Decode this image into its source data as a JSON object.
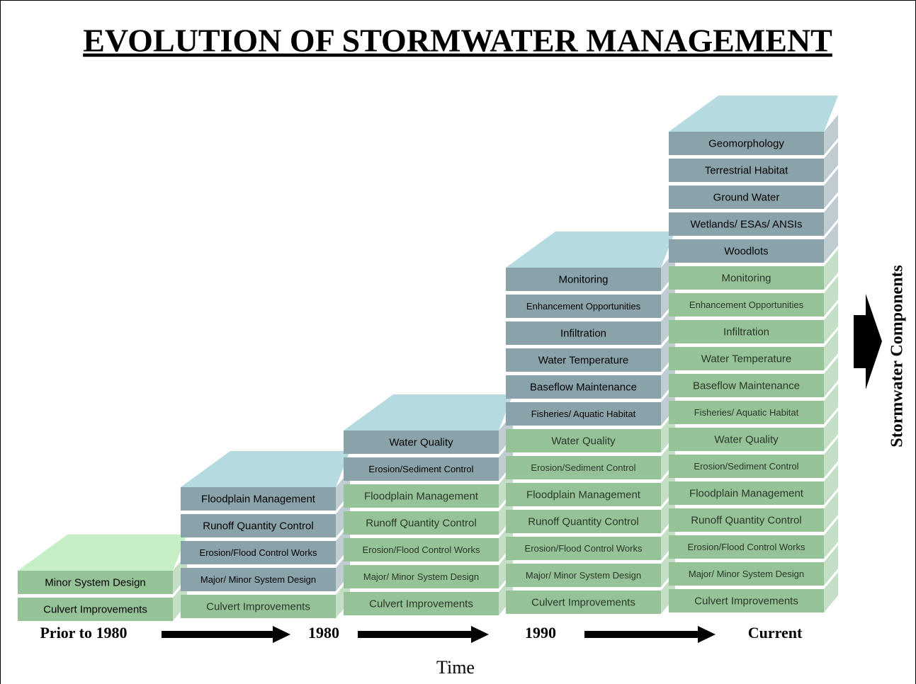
{
  "title": "EVOLUTION OF STORMWATER MANAGEMENT",
  "columns": [
    {
      "time_label": "Prior to 1980",
      "blocks": [
        {
          "label": "Culvert Improvements",
          "color": "#95c397"
        },
        {
          "label": "Minor System Design",
          "color": "#95c397"
        }
      ]
    },
    {
      "time_label": "1980",
      "blocks": [
        {
          "label": "Culvert Improvements",
          "color": "#95c397"
        },
        {
          "label": "Major/ Minor System Design",
          "color": "#8aa3ab"
        },
        {
          "label": "Erosion/Flood Control Works",
          "color": "#8aa3ab"
        },
        {
          "label": "Runoff Quantity Control",
          "color": "#8aa3ab"
        },
        {
          "label": "Floodplain Management",
          "color": "#8aa3ab"
        }
      ]
    },
    {
      "time_label": "",
      "blocks": [
        {
          "label": "Culvert Improvements",
          "color": "#95c397"
        },
        {
          "label": "Major/ Minor System Design",
          "color": "#95c397"
        },
        {
          "label": "Erosion/Flood Control Works",
          "color": "#95c397"
        },
        {
          "label": "Runoff Quantity Control",
          "color": "#95c397"
        },
        {
          "label": "Floodplain Management",
          "color": "#95c397"
        },
        {
          "label": "Erosion/Sediment Control",
          "color": "#8aa3ab"
        },
        {
          "label": "Water Quality",
          "color": "#8aa3ab"
        }
      ]
    },
    {
      "time_label": "1990",
      "blocks": [
        {
          "label": "Culvert Improvements",
          "color": "#95c397"
        },
        {
          "label": "Major/ Minor System Design",
          "color": "#95c397"
        },
        {
          "label": "Erosion/Flood Control Works",
          "color": "#95c397"
        },
        {
          "label": "Runoff Quantity Control",
          "color": "#95c397"
        },
        {
          "label": "Floodplain Management",
          "color": "#95c397"
        },
        {
          "label": "Erosion/Sediment Control",
          "color": "#95c397"
        },
        {
          "label": "Water Quality",
          "color": "#95c397"
        },
        {
          "label": "Fisheries/ Aquatic Habitat",
          "color": "#8aa3ab"
        },
        {
          "label": "Baseflow Maintenance",
          "color": "#8aa3ab"
        },
        {
          "label": "Water Temperature",
          "color": "#8aa3ab"
        },
        {
          "label": "Infiltration",
          "color": "#8aa3ab"
        },
        {
          "label": "Enhancement Opportunities",
          "color": "#8aa3ab"
        },
        {
          "label": "Monitoring",
          "color": "#8aa3ab"
        }
      ]
    },
    {
      "time_label": "Current",
      "blocks": [
        {
          "label": "Culvert Improvements",
          "color": "#95c397"
        },
        {
          "label": "Major/ Minor System Design",
          "color": "#95c397"
        },
        {
          "label": "Erosion/Flood Control Works",
          "color": "#95c397"
        },
        {
          "label": "Runoff Quantity Control",
          "color": "#95c397"
        },
        {
          "label": "Floodplain Management",
          "color": "#95c397"
        },
        {
          "label": "Erosion/Sediment Control",
          "color": "#95c397"
        },
        {
          "label": "Water Quality",
          "color": "#95c397"
        },
        {
          "label": "Fisheries/ Aquatic Habitat",
          "color": "#95c397"
        },
        {
          "label": "Baseflow Maintenance",
          "color": "#95c397"
        },
        {
          "label": "Water Temperature",
          "color": "#95c397"
        },
        {
          "label": "Infiltration",
          "color": "#95c397"
        },
        {
          "label": "Enhancement Opportunities",
          "color": "#95c397"
        },
        {
          "label": "Monitoring",
          "color": "#95c397"
        },
        {
          "label": "Woodlots",
          "color": "#8aa3ab"
        },
        {
          "label": "Wetlands/ ESAs/ ANSIs",
          "color": "#8aa3ab"
        },
        {
          "label": "Ground Water",
          "color": "#8aa3ab"
        },
        {
          "label": "Terrestrial Habitat",
          "color": "#8aa3ab"
        },
        {
          "label": "Geomorphology",
          "color": "#8aa3ab"
        }
      ]
    }
  ],
  "x_axis_label": "Time",
  "side_label": "Stormwater Components"
}
